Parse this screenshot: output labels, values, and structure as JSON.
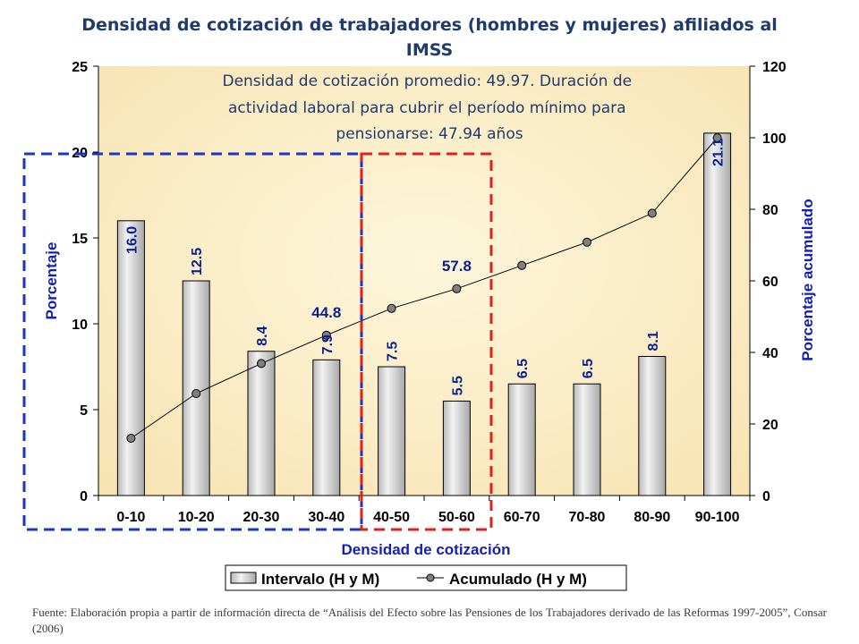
{
  "title": "Densidad de cotización de trabajadores (hombres y mujeres) afiliados al IMSS",
  "annotation": "Densidad de cotización promedio: 49.97. Duración de actividad laboral para cubrir el período mínimo para pensionarse: 47.94 años",
  "source": "Fuente: Elaboración propia a partir de información directa de “Análisis del Efecto sobre las Pensiones de los Trabajadores derivado de las Reformas 1997-2005”, Consar (2006)",
  "chart_data": {
    "type": "bar",
    "xlabel": "Densidad de cotización",
    "ylabel": "Porcentaje",
    "y2label": "Porcentaje acumulado",
    "ylim": [
      0,
      25
    ],
    "y2lim": [
      0,
      120
    ],
    "yticks": [
      "0",
      "5",
      "10",
      "15",
      "20",
      "25"
    ],
    "y2ticks": [
      "0",
      "20",
      "40",
      "60",
      "80",
      "100",
      "120"
    ],
    "categories": [
      "0-10",
      "10-20",
      "20-30",
      "30-40",
      "40-50",
      "50-60",
      "60-70",
      "70-80",
      "80-90",
      "90-100"
    ],
    "series": [
      {
        "name": "Intervalo (H y M)",
        "type": "bar",
        "axis": "left",
        "values": [
          16.0,
          12.5,
          8.4,
          7.9,
          7.5,
          5.5,
          6.5,
          6.5,
          8.1,
          21.1
        ],
        "labels": [
          "16.0",
          "12.5",
          "8.4",
          "7.9",
          "7.5",
          "5.5",
          "6.5",
          "6.5",
          "8.1",
          "21.1"
        ]
      },
      {
        "name": "Acumulado (H y M)",
        "type": "line",
        "axis": "right",
        "values": [
          16.0,
          28.5,
          36.9,
          44.8,
          52.3,
          57.8,
          64.3,
          70.8,
          78.9,
          100.0
        ]
      }
    ],
    "line_labels": [
      {
        "index": 3,
        "text": "44.8"
      },
      {
        "index": 5,
        "text": "57.8"
      }
    ],
    "grid": false,
    "legend": "bottom",
    "colors": {
      "plot_bg": "#fcf0cc",
      "bar_fill": "#d9d9d9",
      "bar_stroke": "#000000",
      "label_color": "#0a1f8f",
      "axis_title_color": "#1420b4",
      "line": "#000000",
      "marker": "#808080",
      "blue_box": "#1a35c8",
      "red_box": "#e0201b"
    }
  }
}
